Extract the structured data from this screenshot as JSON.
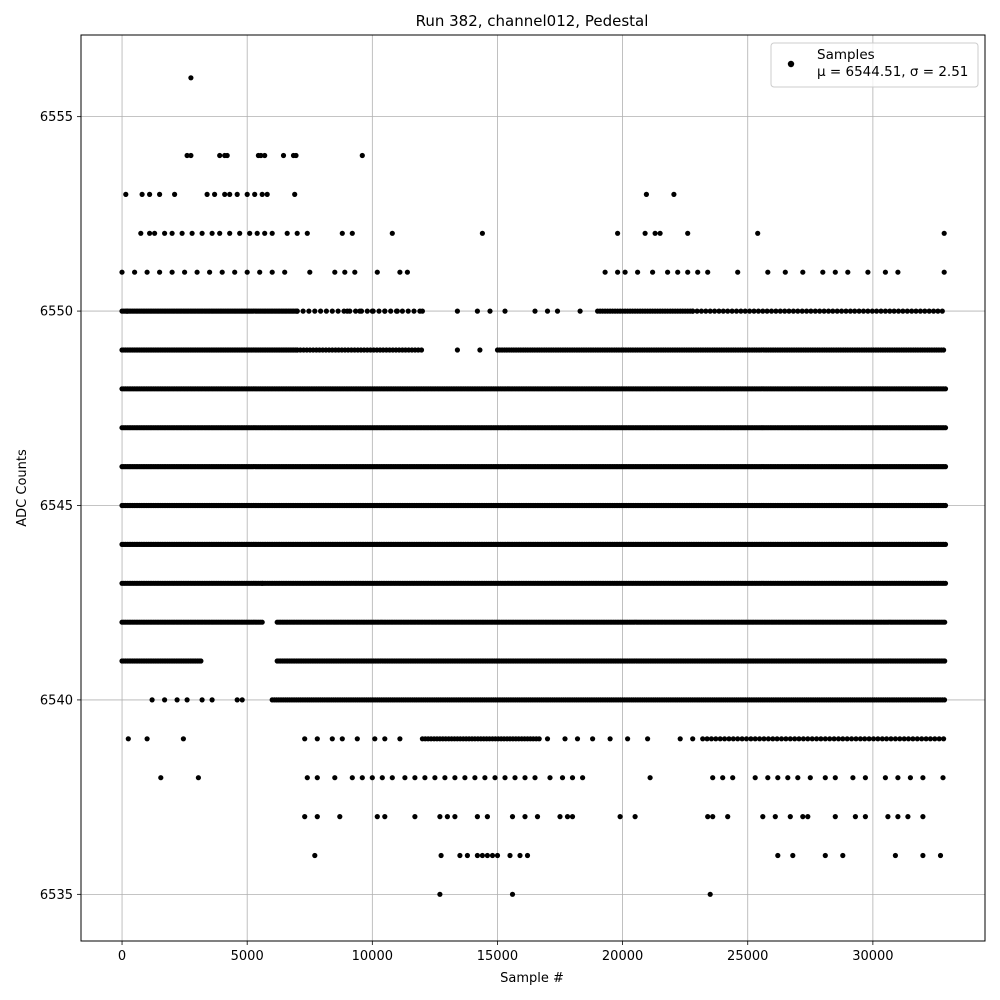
{
  "chart_data": {
    "type": "scatter",
    "title": "Run 382, channel012, Pedestal",
    "xlabel": "Sample #",
    "ylabel": "ADC Counts",
    "xlim": [
      -1640,
      34480
    ],
    "ylim": [
      6533.8,
      6557.1
    ],
    "xticks": [
      0,
      5000,
      10000,
      15000,
      20000,
      25000,
      30000
    ],
    "yticks": [
      6535,
      6540,
      6545,
      6550,
      6555
    ],
    "grid": true,
    "legend_position": "top-right",
    "marker_color": "#000000",
    "legend": {
      "series_name": "Samples",
      "stats": "μ = 6544.51, σ = 2.51"
    },
    "series": [
      {
        "name": "Samples",
        "bands": [
          {
            "y": 6541,
            "segments": [
              [
                0,
                3200,
                1
              ],
              [
                6200,
                32900,
                1
              ]
            ]
          },
          {
            "y": 6542,
            "segments": [
              [
                0,
                5600,
                1
              ],
              [
                6200,
                32900,
                1
              ]
            ]
          },
          {
            "y": 6543,
            "segments": [
              [
                0,
                5600,
                1
              ],
              [
                5600,
                32900,
                1
              ]
            ]
          },
          {
            "y": 6544,
            "segments": [
              [
                0,
                32900,
                1
              ]
            ]
          },
          {
            "y": 6545,
            "segments": [
              [
                0,
                32900,
                1
              ]
            ]
          },
          {
            "y": 6546,
            "segments": [
              [
                0,
                32900,
                1
              ]
            ]
          },
          {
            "y": 6547,
            "segments": [
              [
                0,
                32900,
                1
              ]
            ]
          },
          {
            "y": 6548,
            "segments": [
              [
                0,
                32900,
                1
              ]
            ]
          },
          {
            "y": 6549,
            "segments": [
              [
                0,
                7000,
                1
              ],
              [
                7000,
                12000,
                0.55
              ],
              [
                15000,
                32900,
                0.75
              ]
            ]
          },
          {
            "y": 6550,
            "segments": [
              [
                0,
                7000,
                1
              ],
              [
                7000,
                12000,
                0.3
              ],
              [
                19000,
                22800,
                0.7
              ],
              [
                22800,
                32900,
                0.4
              ]
            ]
          },
          {
            "y": 6540,
            "segments": [
              [
                6000,
                32900,
                0.8
              ]
            ]
          },
          {
            "y": 6539,
            "segments": [
              [
                12000,
                16700,
                0.6
              ],
              [
                23200,
                32900,
                0.4
              ]
            ]
          }
        ],
        "points": [
          [
            2750,
            6556
          ],
          [
            2600,
            6554
          ],
          [
            2750,
            6554
          ],
          [
            3900,
            6554
          ],
          [
            4100,
            6554
          ],
          [
            4200,
            6554
          ],
          [
            5450,
            6554
          ],
          [
            5550,
            6554
          ],
          [
            5700,
            6554
          ],
          [
            6450,
            6554
          ],
          [
            6850,
            6554
          ],
          [
            6950,
            6554
          ],
          [
            9600,
            6554
          ],
          [
            150,
            6553
          ],
          [
            800,
            6553
          ],
          [
            1100,
            6553
          ],
          [
            1500,
            6553
          ],
          [
            2100,
            6553
          ],
          [
            3400,
            6553
          ],
          [
            3700,
            6553
          ],
          [
            4100,
            6553
          ],
          [
            4300,
            6553
          ],
          [
            4600,
            6553
          ],
          [
            5000,
            6553
          ],
          [
            5300,
            6553
          ],
          [
            5600,
            6553
          ],
          [
            5800,
            6553
          ],
          [
            6900,
            6553
          ],
          [
            20950,
            6553
          ],
          [
            22050,
            6553
          ],
          [
            750,
            6552
          ],
          [
            1100,
            6552
          ],
          [
            1300,
            6552
          ],
          [
            1700,
            6552
          ],
          [
            2000,
            6552
          ],
          [
            2400,
            6552
          ],
          [
            2800,
            6552
          ],
          [
            3200,
            6552
          ],
          [
            3600,
            6552
          ],
          [
            3900,
            6552
          ],
          [
            4300,
            6552
          ],
          [
            4700,
            6552
          ],
          [
            5100,
            6552
          ],
          [
            5400,
            6552
          ],
          [
            5700,
            6552
          ],
          [
            6000,
            6552
          ],
          [
            6600,
            6552
          ],
          [
            7000,
            6552
          ],
          [
            7400,
            6552
          ],
          [
            8800,
            6552
          ],
          [
            9200,
            6552
          ],
          [
            10800,
            6552
          ],
          [
            14400,
            6552
          ],
          [
            19800,
            6552
          ],
          [
            20900,
            6552
          ],
          [
            21300,
            6552
          ],
          [
            21500,
            6552
          ],
          [
            22600,
            6552
          ],
          [
            25400,
            6552
          ],
          [
            32850,
            6552
          ],
          [
            0,
            6551
          ],
          [
            500,
            6551
          ],
          [
            1000,
            6551
          ],
          [
            1500,
            6551
          ],
          [
            2000,
            6551
          ],
          [
            2500,
            6551
          ],
          [
            3000,
            6551
          ],
          [
            3500,
            6551
          ],
          [
            4000,
            6551
          ],
          [
            4500,
            6551
          ],
          [
            5000,
            6551
          ],
          [
            5500,
            6551
          ],
          [
            6000,
            6551
          ],
          [
            6500,
            6551
          ],
          [
            7500,
            6551
          ],
          [
            8500,
            6551
          ],
          [
            8900,
            6551
          ],
          [
            9300,
            6551
          ],
          [
            10200,
            6551
          ],
          [
            11100,
            6551
          ],
          [
            11400,
            6551
          ],
          [
            19300,
            6551
          ],
          [
            19800,
            6551
          ],
          [
            20100,
            6551
          ],
          [
            20600,
            6551
          ],
          [
            21200,
            6551
          ],
          [
            21800,
            6551
          ],
          [
            22200,
            6551
          ],
          [
            22600,
            6551
          ],
          [
            23000,
            6551
          ],
          [
            23400,
            6551
          ],
          [
            24600,
            6551
          ],
          [
            25800,
            6551
          ],
          [
            26500,
            6551
          ],
          [
            27200,
            6551
          ],
          [
            28000,
            6551
          ],
          [
            28500,
            6551
          ],
          [
            29000,
            6551
          ],
          [
            29800,
            6551
          ],
          [
            30500,
            6551
          ],
          [
            31000,
            6551
          ],
          [
            32850,
            6551
          ],
          [
            200,
            6550
          ],
          [
            9000,
            6550
          ],
          [
            9500,
            6550
          ],
          [
            10000,
            6550
          ],
          [
            10500,
            6550
          ],
          [
            11000,
            6550
          ],
          [
            12000,
            6550
          ],
          [
            13400,
            6550
          ],
          [
            14200,
            6550
          ],
          [
            14700,
            6550
          ],
          [
            15300,
            6550
          ],
          [
            16500,
            6550
          ],
          [
            17000,
            6550
          ],
          [
            17400,
            6550
          ],
          [
            18300,
            6550
          ],
          [
            13400,
            6549
          ],
          [
            14300,
            6549
          ],
          [
            1200,
            6540
          ],
          [
            1700,
            6540
          ],
          [
            2200,
            6540
          ],
          [
            2600,
            6540
          ],
          [
            3200,
            6540
          ],
          [
            3600,
            6540
          ],
          [
            4600,
            6540
          ],
          [
            4800,
            6540
          ],
          [
            250,
            6539
          ],
          [
            1000,
            6539
          ],
          [
            2450,
            6539
          ],
          [
            7300,
            6539
          ],
          [
            7800,
            6539
          ],
          [
            8400,
            6539
          ],
          [
            8800,
            6539
          ],
          [
            9400,
            6539
          ],
          [
            10100,
            6539
          ],
          [
            10500,
            6539
          ],
          [
            11100,
            6539
          ],
          [
            17000,
            6539
          ],
          [
            17700,
            6539
          ],
          [
            18200,
            6539
          ],
          [
            18800,
            6539
          ],
          [
            19500,
            6539
          ],
          [
            20200,
            6539
          ],
          [
            21000,
            6539
          ],
          [
            22300,
            6539
          ],
          [
            22800,
            6539
          ],
          [
            1550,
            6538
          ],
          [
            3050,
            6538
          ],
          [
            7400,
            6538
          ],
          [
            7800,
            6538
          ],
          [
            8500,
            6538
          ],
          [
            9200,
            6538
          ],
          [
            9600,
            6538
          ],
          [
            10000,
            6538
          ],
          [
            10400,
            6538
          ],
          [
            10800,
            6538
          ],
          [
            11300,
            6538
          ],
          [
            11700,
            6538
          ],
          [
            12100,
            6538
          ],
          [
            12500,
            6538
          ],
          [
            12900,
            6538
          ],
          [
            13300,
            6538
          ],
          [
            13700,
            6538
          ],
          [
            14100,
            6538
          ],
          [
            14500,
            6538
          ],
          [
            14900,
            6538
          ],
          [
            15300,
            6538
          ],
          [
            15700,
            6538
          ],
          [
            16100,
            6538
          ],
          [
            16500,
            6538
          ],
          [
            17100,
            6538
          ],
          [
            17600,
            6538
          ],
          [
            18000,
            6538
          ],
          [
            18400,
            6538
          ],
          [
            21100,
            6538
          ],
          [
            23600,
            6538
          ],
          [
            24000,
            6538
          ],
          [
            24400,
            6538
          ],
          [
            25300,
            6538
          ],
          [
            25800,
            6538
          ],
          [
            26200,
            6538
          ],
          [
            26600,
            6538
          ],
          [
            27000,
            6538
          ],
          [
            27500,
            6538
          ],
          [
            28100,
            6538
          ],
          [
            28500,
            6538
          ],
          [
            29200,
            6538
          ],
          [
            29700,
            6538
          ],
          [
            30500,
            6538
          ],
          [
            31000,
            6538
          ],
          [
            31500,
            6538
          ],
          [
            32000,
            6538
          ],
          [
            32800,
            6538
          ],
          [
            7300,
            6537
          ],
          [
            7800,
            6537
          ],
          [
            8700,
            6537
          ],
          [
            10200,
            6537
          ],
          [
            10500,
            6537
          ],
          [
            11700,
            6537
          ],
          [
            12700,
            6537
          ],
          [
            13000,
            6537
          ],
          [
            13300,
            6537
          ],
          [
            14200,
            6537
          ],
          [
            14600,
            6537
          ],
          [
            15600,
            6537
          ],
          [
            16100,
            6537
          ],
          [
            16600,
            6537
          ],
          [
            17500,
            6537
          ],
          [
            17800,
            6537
          ],
          [
            18000,
            6537
          ],
          [
            19900,
            6537
          ],
          [
            20500,
            6537
          ],
          [
            23400,
            6537
          ],
          [
            23600,
            6537
          ],
          [
            24200,
            6537
          ],
          [
            25600,
            6537
          ],
          [
            26100,
            6537
          ],
          [
            26700,
            6537
          ],
          [
            27200,
            6537
          ],
          [
            27400,
            6537
          ],
          [
            28500,
            6537
          ],
          [
            29300,
            6537
          ],
          [
            29700,
            6537
          ],
          [
            30600,
            6537
          ],
          [
            31000,
            6537
          ],
          [
            31400,
            6537
          ],
          [
            32000,
            6537
          ],
          [
            7700,
            6536
          ],
          [
            12750,
            6536
          ],
          [
            13500,
            6536
          ],
          [
            13800,
            6536
          ],
          [
            14200,
            6536
          ],
          [
            14400,
            6536
          ],
          [
            14600,
            6536
          ],
          [
            14800,
            6536
          ],
          [
            15000,
            6536
          ],
          [
            15500,
            6536
          ],
          [
            15900,
            6536
          ],
          [
            16200,
            6536
          ],
          [
            26200,
            6536
          ],
          [
            26800,
            6536
          ],
          [
            28100,
            6536
          ],
          [
            28800,
            6536
          ],
          [
            30900,
            6536
          ],
          [
            32000,
            6536
          ],
          [
            32700,
            6536
          ],
          [
            12700,
            6535
          ],
          [
            15600,
            6535
          ],
          [
            23500,
            6535
          ]
        ]
      }
    ]
  }
}
